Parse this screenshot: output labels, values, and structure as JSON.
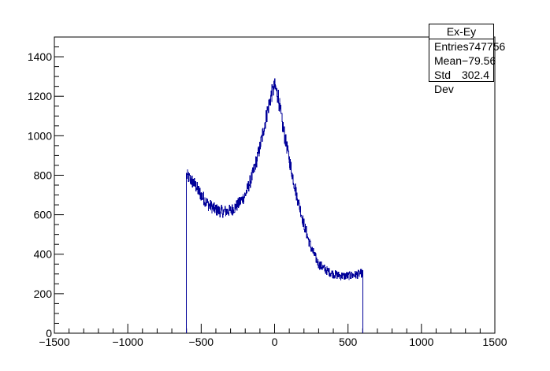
{
  "chart_data": {
    "type": "bar",
    "histogram": true,
    "xlim": [
      -1500,
      1500
    ],
    "ylim": [
      0,
      1500
    ],
    "x_ticks": [
      -1500,
      -1000,
      -500,
      0,
      500,
      1000,
      1500
    ],
    "y_ticks": [
      0,
      200,
      400,
      600,
      800,
      1000,
      1200,
      1400
    ],
    "line_color": "#000099",
    "x_profile": [
      -600,
      -550,
      -500,
      -450,
      -400,
      -350,
      -300,
      -250,
      -200,
      -150,
      -100,
      -50,
      -25,
      0,
      25,
      50,
      100,
      150,
      200,
      250,
      300,
      350,
      400,
      450,
      500,
      550,
      600
    ],
    "y_profile": [
      800,
      760,
      700,
      650,
      625,
      615,
      620,
      650,
      700,
      800,
      940,
      1120,
      1200,
      1250,
      1200,
      1070,
      880,
      700,
      550,
      430,
      350,
      320,
      300,
      290,
      290,
      295,
      305
    ],
    "noise_amplitude": 30
  },
  "stats_box": {
    "title": "Ex-Ey",
    "rows": [
      {
        "label": "Entries",
        "value": "747756"
      },
      {
        "label": "Mean",
        "value": "−79.56"
      },
      {
        "label": "Std Dev",
        "value": "302.4"
      }
    ]
  }
}
